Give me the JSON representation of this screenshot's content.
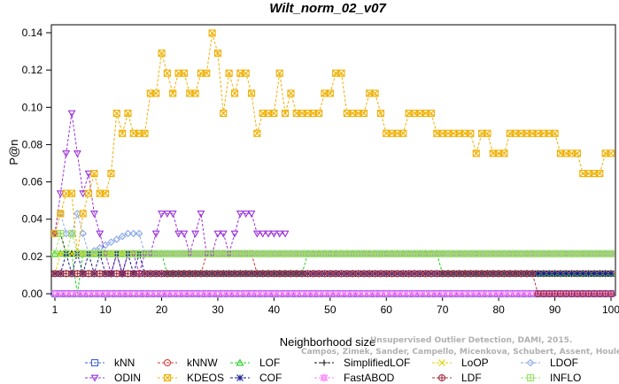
{
  "chart_data": {
    "type": "line",
    "title": "Wilt_norm_02_v07",
    "xlabel": "Neighborhood size",
    "ylabel": "P@n",
    "xlim": [
      0,
      100
    ],
    "ylim": [
      0,
      0.14
    ],
    "xticks": [
      1,
      10,
      20,
      30,
      40,
      50,
      60,
      70,
      80,
      90,
      100
    ],
    "xtick_labels": [
      "1",
      "10",
      "20",
      "30",
      "40",
      "50",
      "60",
      "70",
      "80",
      "90",
      "100"
    ],
    "yticks": [
      0.0,
      0.02,
      0.04,
      0.06,
      0.08,
      0.1,
      0.12,
      0.14
    ],
    "ytick_labels": [
      "0.00",
      "0.02",
      "0.04",
      "0.06",
      "0.08",
      "0.10",
      "0.12",
      "0.14"
    ],
    "grid": false,
    "legend_position": "bottom",
    "credit": [
      "Campos, Zimek, Sander, Campello, Micenkova, Schubert, Assent, Houle",
      "Unsupervised Outlier Detection, DAMI, 2015."
    ],
    "series": [
      {
        "name": "kNN",
        "color": "#3b5fd9",
        "marker": "square",
        "x": [
          1,
          100
        ],
        "y": [
          0.0,
          0.0
        ]
      },
      {
        "name": "kNNW",
        "color": "#d93030",
        "marker": "circle",
        "x": [
          1,
          27,
          28,
          36,
          37,
          99,
          100
        ],
        "y": [
          0.0108,
          0.0108,
          0.0215,
          0.0215,
          0.0108,
          0.0108,
          0.0108
        ]
      },
      {
        "name": "LOF",
        "color": "#22cc22",
        "marker": "triangle-up",
        "x": [
          1,
          4,
          5,
          6,
          20,
          21,
          45,
          46,
          69,
          70,
          100
        ],
        "y": [
          0.0215,
          0.0215,
          0.0,
          0.0215,
          0.0215,
          0.0108,
          0.0108,
          0.0215,
          0.0215,
          0.0108,
          0.0108
        ]
      },
      {
        "name": "SimplifiedLOF",
        "color": "#111111",
        "marker": "plus",
        "x": [
          1,
          2,
          3,
          4,
          5,
          20,
          21,
          100
        ],
        "y": [
          0.0323,
          0.0323,
          0.0215,
          0.0215,
          0.0215,
          0.0215,
          0.0215,
          0.0215
        ]
      },
      {
        "name": "LoOP",
        "color": "#e6d000",
        "marker": "x",
        "x": [
          1,
          2,
          3,
          4,
          5,
          100
        ],
        "y": [
          0.0108,
          0.0215,
          0.0215,
          0.0215,
          0.0215,
          0.0215
        ]
      },
      {
        "name": "LDOF",
        "color": "#8aa8e6",
        "marker": "diamond",
        "x": [
          1,
          2,
          3,
          4,
          5,
          6,
          7,
          14,
          15,
          16,
          17,
          18,
          100
        ],
        "y": [
          0.0323,
          0.043,
          0.0323,
          0.0323,
          0.043,
          0.0323,
          0.0215,
          0.0323,
          0.0323,
          0.0323,
          0.0215,
          0.0215,
          0.0215
        ]
      },
      {
        "name": "ODIN",
        "color": "#9b30d9",
        "marker": "triangle-down",
        "x": [
          1,
          2,
          3,
          4,
          5,
          6,
          7,
          8,
          9,
          10,
          11,
          12,
          13,
          14,
          15,
          16,
          17,
          18,
          19,
          20,
          21,
          22,
          23,
          24,
          25,
          26,
          27,
          28,
          29,
          30,
          31,
          32,
          33,
          34,
          35,
          36,
          37,
          38,
          39,
          40,
          41,
          42
        ],
        "y": [
          0.0323,
          0.0538,
          0.0753,
          0.0968,
          0.0753,
          0.0538,
          0.0645,
          0.043,
          0.0323,
          0.0215,
          0.0108,
          0.0215,
          0.0108,
          0.0215,
          0.0215,
          0.0108,
          0.0215,
          0.0215,
          0.0323,
          0.043,
          0.043,
          0.043,
          0.0323,
          0.0323,
          0.0215,
          0.0323,
          0.043,
          0.0215,
          0.0215,
          0.0323,
          0.0323,
          0.0215,
          0.0323,
          0.043,
          0.043,
          0.043,
          0.0323,
          0.0323,
          0.0323,
          0.0323,
          0.0323,
          0.0323
        ]
      },
      {
        "name": "KDEOS",
        "color": "#f0b000",
        "marker": "square-x",
        "x": [
          1,
          2,
          3,
          4,
          5,
          6,
          7,
          8,
          9,
          10,
          11,
          12,
          13,
          14,
          15,
          16,
          17,
          18,
          19,
          20,
          21,
          22,
          23,
          24,
          25,
          26,
          27,
          28,
          29,
          30,
          31,
          32,
          33,
          34,
          35,
          36,
          37,
          38,
          39,
          40,
          41,
          42,
          43,
          44,
          45,
          46,
          47,
          48,
          49,
          50,
          51,
          52,
          53,
          54,
          55,
          56,
          57,
          58,
          59,
          60,
          61,
          62,
          63,
          64,
          65,
          66,
          67,
          68,
          69,
          70,
          71,
          72,
          73,
          74,
          75,
          76,
          77,
          78,
          79,
          80,
          81,
          82,
          83,
          84,
          85,
          86,
          87,
          88,
          89,
          90,
          91,
          92,
          93,
          94,
          95,
          96,
          97,
          98,
          99,
          100
        ],
        "y": [
          0.0323,
          0.043,
          0.0538,
          0.0538,
          0.0215,
          0.043,
          0.0538,
          0.0645,
          0.0538,
          0.0538,
          0.0645,
          0.0968,
          0.086,
          0.0968,
          0.086,
          0.086,
          0.086,
          0.1075,
          0.1075,
          0.129,
          0.1183,
          0.1075,
          0.1183,
          0.1183,
          0.1075,
          0.1075,
          0.1183,
          0.1183,
          0.1398,
          0.129,
          0.0968,
          0.1183,
          0.1075,
          0.1183,
          0.1183,
          0.1075,
          0.086,
          0.0968,
          0.0968,
          0.0968,
          0.1183,
          0.0968,
          0.1075,
          0.0968,
          0.0968,
          0.0968,
          0.0968,
          0.0968,
          0.1075,
          0.1075,
          0.1183,
          0.1183,
          0.0968,
          0.0968,
          0.0968,
          0.0968,
          0.1075,
          0.1075,
          0.0968,
          0.086,
          0.086,
          0.086,
          0.086,
          0.0968,
          0.0968,
          0.0968,
          0.0968,
          0.0968,
          0.086,
          0.086,
          0.086,
          0.086,
          0.086,
          0.086,
          0.086,
          0.0753,
          0.086,
          0.086,
          0.0753,
          0.0753,
          0.0753,
          0.086,
          0.086,
          0.086,
          0.086,
          0.086,
          0.086,
          0.086,
          0.086,
          0.086,
          0.0753,
          0.0753,
          0.0753,
          0.0753,
          0.0645,
          0.0645,
          0.0645,
          0.0645,
          0.0753,
          0.0753
        ]
      },
      {
        "name": "COF",
        "color": "#1a1a8c",
        "marker": "asterisk",
        "x": [
          1,
          2,
          3,
          4,
          5,
          6,
          7,
          8,
          9,
          10,
          11,
          12,
          13,
          14,
          15,
          16,
          17,
          18,
          100
        ],
        "y": [
          0.0108,
          0.0108,
          0.0215,
          0.0108,
          0.0215,
          0.0108,
          0.0215,
          0.0108,
          0.0215,
          0.0108,
          0.0108,
          0.0215,
          0.0108,
          0.0215,
          0.0108,
          0.0215,
          0.0108,
          0.0108,
          0.0108
        ]
      },
      {
        "name": "FastABOD",
        "color": "#ff80ff",
        "marker": "triangle-up-down",
        "x": [
          1,
          100
        ],
        "y": [
          0.0,
          0.0
        ]
      },
      {
        "name": "LDF",
        "color": "#a03040",
        "marker": "circle-plus",
        "x": [
          1,
          2,
          3,
          4,
          5,
          6,
          7,
          8,
          9,
          10,
          11,
          12,
          28,
          29,
          50,
          51,
          86,
          87,
          100
        ],
        "y": [
          0.0108,
          0.0108,
          0.0108,
          0.0108,
          0.0108,
          0.0108,
          0.0108,
          0.0108,
          0.0108,
          0.0108,
          0.0108,
          0.0108,
          0.0108,
          0.0108,
          0.0108,
          0.0108,
          0.0108,
          0.0,
          0.0
        ]
      },
      {
        "name": "INFLO",
        "color": "#99e066",
        "marker": "square-plus",
        "x": [
          1,
          2,
          3,
          4,
          5,
          6,
          7,
          100
        ],
        "y": [
          0.0215,
          0.0323,
          0.0215,
          0.0323,
          0.0215,
          0.0215,
          0.0215,
          0.0215
        ]
      }
    ]
  }
}
